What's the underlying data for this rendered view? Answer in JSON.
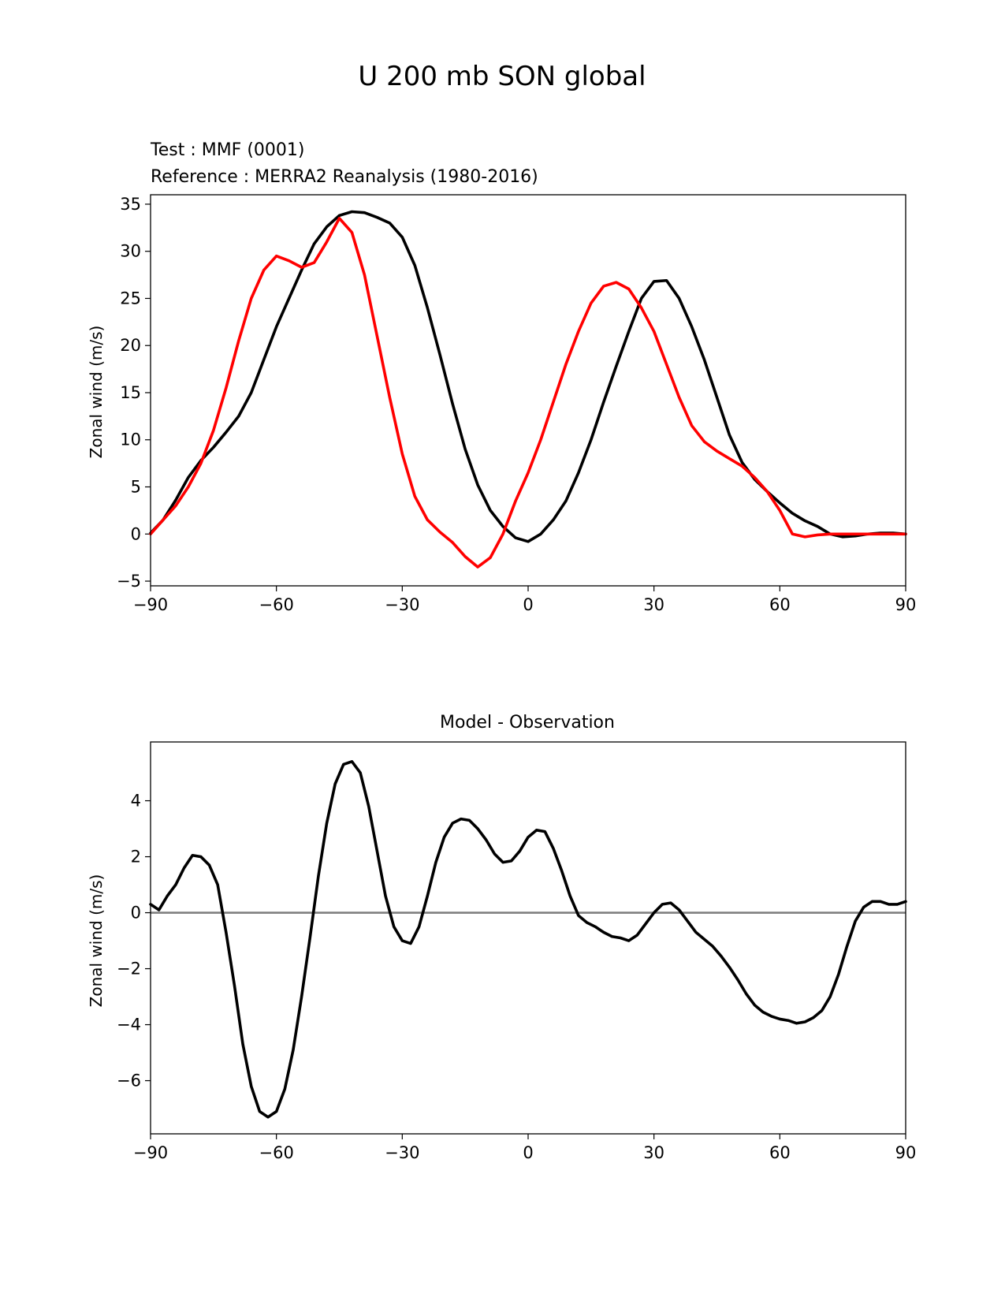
{
  "figure": {
    "title": "U 200 mb SON global"
  },
  "chart_data": [
    {
      "type": "line",
      "test_label": "Test : MMF (0001)",
      "reference_label": "Reference : MERRA2 Reanalysis (1980-2016)",
      "ylabel": "Zonal wind (m/s)",
      "xlim": [
        -90,
        90
      ],
      "ylim": [
        -5.5,
        36
      ],
      "xticks": [
        -90,
        -60,
        -30,
        0,
        30,
        60,
        90
      ],
      "yticks": [
        -5,
        0,
        5,
        10,
        15,
        20,
        25,
        30,
        35
      ],
      "x_tick_labels": [
        "−90",
        "−60",
        "−30",
        "0",
        "30",
        "60",
        "90"
      ],
      "y_tick_labels": [
        "−5",
        "0",
        "5",
        "10",
        "15",
        "20",
        "25",
        "30",
        "35"
      ],
      "grid": false,
      "colors": {
        "test": "#000000",
        "reference": "#ff0000"
      },
      "series": [
        {
          "key": "test",
          "x": [
            -90,
            -87,
            -84,
            -81,
            -78,
            -75,
            -72,
            -69,
            -66,
            -63,
            -60,
            -57,
            -54,
            -51,
            -48,
            -45,
            -42,
            -39,
            -36,
            -33,
            -30,
            -27,
            -24,
            -21,
            -18,
            -15,
            -12,
            -9,
            -6,
            -3,
            0,
            3,
            6,
            9,
            12,
            15,
            18,
            21,
            24,
            27,
            30,
            33,
            36,
            39,
            42,
            45,
            48,
            51,
            54,
            57,
            60,
            63,
            66,
            69,
            72,
            75,
            78,
            81,
            84,
            87,
            90
          ],
          "y": [
            0.1,
            1.5,
            3.6,
            6.0,
            7.8,
            9.2,
            10.8,
            12.5,
            15.0,
            18.5,
            22.0,
            25.0,
            28.0,
            30.8,
            32.6,
            33.8,
            34.2,
            34.1,
            33.6,
            33.0,
            31.5,
            28.5,
            24.0,
            19.0,
            13.8,
            9.0,
            5.2,
            2.5,
            0.8,
            -0.4,
            -0.8,
            0.0,
            1.5,
            3.5,
            6.5,
            10.0,
            14.0,
            17.8,
            21.5,
            25.0,
            26.8,
            26.9,
            25.0,
            22.0,
            18.5,
            14.5,
            10.5,
            7.6,
            5.8,
            4.5,
            3.3,
            2.2,
            1.4,
            0.8,
            0.0,
            -0.3,
            -0.2,
            0.0,
            0.1,
            0.1,
            0.0
          ]
        },
        {
          "key": "reference",
          "x": [
            -90,
            -87,
            -84,
            -81,
            -78,
            -75,
            -72,
            -69,
            -66,
            -63,
            -60,
            -57,
            -54,
            -51,
            -48,
            -45,
            -42,
            -39,
            -36,
            -33,
            -30,
            -27,
            -24,
            -21,
            -18,
            -15,
            -12,
            -9,
            -6,
            -3,
            0,
            3,
            6,
            9,
            12,
            15,
            18,
            21,
            24,
            27,
            30,
            33,
            36,
            39,
            42,
            45,
            48,
            51,
            54,
            57,
            60,
            63,
            66,
            69,
            72,
            75,
            78,
            81,
            84,
            87,
            90
          ],
          "y": [
            0.0,
            1.5,
            3.0,
            5.0,
            7.5,
            11.0,
            15.5,
            20.5,
            25.0,
            28.0,
            29.5,
            29.0,
            28.3,
            28.8,
            31.0,
            33.5,
            32.0,
            27.5,
            21.0,
            14.5,
            8.5,
            4.0,
            1.5,
            0.2,
            -0.9,
            -2.4,
            -3.5,
            -2.5,
            0.0,
            3.5,
            6.5,
            10.0,
            14.0,
            18.0,
            21.5,
            24.5,
            26.3,
            26.7,
            26.0,
            24.0,
            21.5,
            18.0,
            14.5,
            11.5,
            9.8,
            8.8,
            8.0,
            7.2,
            6.0,
            4.5,
            2.5,
            0.0,
            -0.3,
            -0.1,
            0.0,
            0.0,
            0.0,
            0.0,
            0.0,
            0.0,
            0.0
          ]
        }
      ]
    },
    {
      "type": "line",
      "title": "Model - Observation",
      "ylabel": "Zonal wind (m/s)",
      "xlim": [
        -90,
        90
      ],
      "ylim": [
        -7.9,
        6.1
      ],
      "xticks": [
        -90,
        -60,
        -30,
        0,
        30,
        60,
        90
      ],
      "yticks": [
        -6,
        -4,
        -2,
        0,
        2,
        4
      ],
      "x_tick_labels": [
        "−90",
        "−60",
        "−30",
        "0",
        "30",
        "60",
        "90"
      ],
      "y_tick_labels": [
        "−6",
        "−4",
        "−2",
        "0",
        "2",
        "4"
      ],
      "grid": false,
      "zero_line_color": "#808080",
      "colors": {
        "diff": "#000000"
      },
      "series": [
        {
          "key": "diff",
          "x": [
            -90,
            -88,
            -86,
            -84,
            -82,
            -80,
            -78,
            -76,
            -74,
            -72,
            -70,
            -68,
            -66,
            -64,
            -62,
            -60,
            -58,
            -56,
            -54,
            -52,
            -50,
            -48,
            -46,
            -44,
            -42,
            -40,
            -38,
            -36,
            -34,
            -32,
            -30,
            -28,
            -26,
            -24,
            -22,
            -20,
            -18,
            -16,
            -14,
            -12,
            -10,
            -8,
            -6,
            -4,
            -2,
            0,
            2,
            4,
            6,
            8,
            10,
            12,
            14,
            16,
            18,
            20,
            22,
            24,
            26,
            28,
            30,
            32,
            34,
            36,
            38,
            40,
            42,
            44,
            46,
            48,
            50,
            52,
            54,
            56,
            58,
            60,
            62,
            64,
            66,
            68,
            70,
            72,
            74,
            76,
            78,
            80,
            82,
            84,
            86,
            88,
            90
          ],
          "y": [
            0.3,
            0.1,
            0.6,
            1.0,
            1.6,
            2.05,
            2.0,
            1.7,
            1.0,
            -0.7,
            -2.6,
            -4.7,
            -6.2,
            -7.1,
            -7.3,
            -7.1,
            -6.3,
            -4.9,
            -3.0,
            -0.9,
            1.3,
            3.2,
            4.6,
            5.3,
            5.4,
            5.0,
            3.8,
            2.2,
            0.6,
            -0.5,
            -1.0,
            -1.1,
            -0.5,
            0.6,
            1.8,
            2.7,
            3.2,
            3.35,
            3.3,
            3.0,
            2.6,
            2.1,
            1.8,
            1.85,
            2.2,
            2.7,
            2.95,
            2.9,
            2.3,
            1.5,
            0.6,
            -0.1,
            -0.35,
            -0.5,
            -0.7,
            -0.85,
            -0.9,
            -1.0,
            -0.8,
            -0.4,
            0.0,
            0.3,
            0.35,
            0.1,
            -0.3,
            -0.7,
            -0.95,
            -1.2,
            -1.55,
            -1.95,
            -2.4,
            -2.9,
            -3.3,
            -3.55,
            -3.7,
            -3.8,
            -3.85,
            -3.95,
            -3.9,
            -3.75,
            -3.5,
            -3.0,
            -2.2,
            -1.2,
            -0.3,
            0.2,
            0.4,
            0.4,
            0.3,
            0.3,
            0.4
          ]
        }
      ]
    }
  ]
}
